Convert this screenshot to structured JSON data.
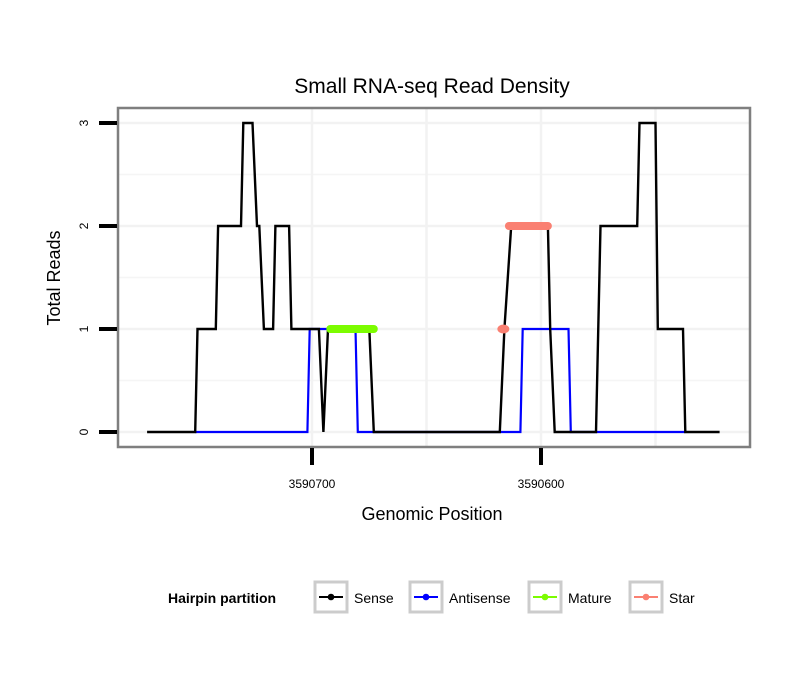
{
  "chart_data": {
    "type": "line",
    "title": "Small RNA-seq Read Density",
    "xlabel": "Genomic Position",
    "ylabel": "Total Reads",
    "xlim": [
      3590786,
      3590510
    ],
    "x_reversed": true,
    "ylim": [
      -0.15,
      3.15
    ],
    "x_ticks": [
      3590700,
      3590600
    ],
    "x_tick_labels": [
      "3590700",
      "3590600"
    ],
    "y_ticks": [
      0,
      1,
      2,
      3
    ],
    "y_tick_labels": [
      "0",
      "1",
      "2",
      "3"
    ],
    "grid": true,
    "legend": {
      "title": "Hairpin partition",
      "position": "bottom",
      "entries": [
        {
          "name": "Sense",
          "color": "#000000"
        },
        {
          "name": "Antisense",
          "color": "#0000ff"
        },
        {
          "name": "Mature",
          "color": "#7cfc00"
        },
        {
          "name": "Star",
          "color": "#fa8072"
        }
      ]
    },
    "series": [
      {
        "name": "Sense",
        "color": "#000000",
        "points": [
          [
            3590772,
            0
          ],
          [
            3590751,
            0
          ],
          [
            3590750,
            1
          ],
          [
            3590742,
            1
          ],
          [
            3590741,
            2
          ],
          [
            3590731,
            2
          ],
          [
            3590730,
            3
          ],
          [
            3590726,
            3
          ],
          [
            3590724,
            2
          ],
          [
            3590723,
            2
          ],
          [
            3590721,
            1
          ],
          [
            3590717,
            1
          ],
          [
            3590716,
            2
          ],
          [
            3590710,
            2
          ],
          [
            3590709,
            1
          ],
          [
            3590697,
            1
          ],
          [
            3590695,
            0
          ],
          [
            3590693,
            1
          ],
          [
            3590675,
            1
          ],
          [
            3590673,
            0
          ],
          [
            3590618,
            0
          ],
          [
            3590616,
            1
          ],
          [
            3590613,
            2
          ],
          [
            3590597,
            2
          ],
          [
            3590596,
            1
          ],
          [
            3590594,
            0
          ],
          [
            3590576,
            0
          ],
          [
            3590574,
            2
          ],
          [
            3590558,
            2
          ],
          [
            3590557,
            3
          ],
          [
            3590550,
            3
          ],
          [
            3590549,
            1
          ],
          [
            3590538,
            1
          ],
          [
            3590537,
            0
          ],
          [
            3590522,
            0
          ]
        ]
      },
      {
        "name": "Antisense",
        "color": "#0000ff",
        "points": [
          [
            3590751,
            0
          ],
          [
            3590702,
            0
          ],
          [
            3590701,
            1
          ],
          [
            3590681,
            1
          ],
          [
            3590680,
            0
          ],
          [
            3590673,
            0
          ],
          [
            3590616,
            0
          ],
          [
            3590609,
            0
          ],
          [
            3590608,
            1
          ],
          [
            3590588,
            1
          ],
          [
            3590587,
            0
          ],
          [
            3590537,
            0
          ]
        ]
      },
      {
        "name": "Mature",
        "color": "#7cfc00",
        "points": [
          [
            3590692,
            1
          ],
          [
            3590673,
            1
          ]
        ]
      },
      {
        "name": "Star",
        "color": "#fa8072",
        "points": [
          [
            3590616,
            1
          ]
        ],
        "segments": [
          [
            [
              3590614,
              2
            ],
            [
              3590597,
              2
            ]
          ]
        ]
      }
    ]
  }
}
